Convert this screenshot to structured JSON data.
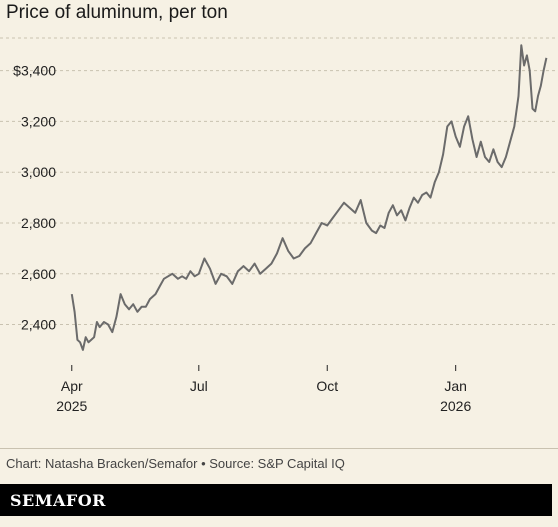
{
  "title": "Price of aluminum, per ton",
  "credit": "Chart: Natasha Bracken/Semafor • Source: S&P Capital IQ",
  "brand": "SEMAFOR",
  "colors": {
    "background": "#f6f1e4",
    "line": "#6b6b6b",
    "grid": "#c9c2b0",
    "brand_bar": "#000000"
  },
  "chart_data": {
    "type": "line",
    "title": "Price of aluminum, per ton",
    "xlabel": "",
    "ylabel": "",
    "ylim": [
      2280,
      3560
    ],
    "xlim": [
      "2025-03-25",
      "2026-03-11"
    ],
    "y_ticks": [
      {
        "value": 2400,
        "label": "2,400"
      },
      {
        "value": 2600,
        "label": "2,600"
      },
      {
        "value": 2800,
        "label": "2,800"
      },
      {
        "value": 3000,
        "label": "3,000"
      },
      {
        "value": 3200,
        "label": "3,200"
      },
      {
        "value": 3400,
        "label": "$3,400"
      }
    ],
    "x_ticks": [
      {
        "date": "2025-04-01",
        "label": "Apr",
        "sublabel": "2025"
      },
      {
        "date": "2025-07-01",
        "label": "Jul",
        "sublabel": ""
      },
      {
        "date": "2025-10-01",
        "label": "Oct",
        "sublabel": ""
      },
      {
        "date": "2026-01-01",
        "label": "Jan",
        "sublabel": "2026"
      }
    ],
    "grid": true,
    "series": [
      {
        "x": [
          "2025-04-01",
          "2025-04-03",
          "2025-04-05",
          "2025-04-07",
          "2025-04-09",
          "2025-04-11",
          "2025-04-13",
          "2025-04-15",
          "2025-04-17",
          "2025-04-19",
          "2025-04-21",
          "2025-04-24",
          "2025-04-27",
          "2025-04-30",
          "2025-05-03",
          "2025-05-06",
          "2025-05-09",
          "2025-05-12",
          "2025-05-15",
          "2025-05-18",
          "2025-05-21",
          "2025-05-24",
          "2025-05-27",
          "2025-05-31",
          "2025-06-03",
          "2025-06-06",
          "2025-06-09",
          "2025-06-12",
          "2025-06-16",
          "2025-06-19",
          "2025-06-22",
          "2025-06-25",
          "2025-06-28",
          "2025-07-01",
          "2025-07-05",
          "2025-07-09",
          "2025-07-13",
          "2025-07-17",
          "2025-07-21",
          "2025-07-25",
          "2025-07-29",
          "2025-08-02",
          "2025-08-06",
          "2025-08-10",
          "2025-08-14",
          "2025-08-18",
          "2025-08-22",
          "2025-08-26",
          "2025-08-30",
          "2025-09-03",
          "2025-09-07",
          "2025-09-11",
          "2025-09-15",
          "2025-09-19",
          "2025-09-23",
          "2025-09-27",
          "2025-10-01",
          "2025-10-05",
          "2025-10-09",
          "2025-10-13",
          "2025-10-17",
          "2025-10-21",
          "2025-10-25",
          "2025-10-29",
          "2025-11-02",
          "2025-11-05",
          "2025-11-08",
          "2025-11-11",
          "2025-11-14",
          "2025-11-17",
          "2025-11-20",
          "2025-11-23",
          "2025-11-26",
          "2025-11-29",
          "2025-12-02",
          "2025-12-05",
          "2025-12-08",
          "2025-12-11",
          "2025-12-14",
          "2025-12-17",
          "2025-12-20",
          "2025-12-23",
          "2025-12-26",
          "2025-12-29",
          "2026-01-01",
          "2026-01-04",
          "2026-01-07",
          "2026-01-10",
          "2026-01-13",
          "2026-01-16",
          "2026-01-19",
          "2026-01-22",
          "2026-01-25",
          "2026-01-28",
          "2026-01-31",
          "2026-02-03",
          "2026-02-06",
          "2026-02-09",
          "2026-02-12",
          "2026-02-15",
          "2026-02-17",
          "2026-02-19",
          "2026-02-21",
          "2026-02-23",
          "2026-02-25",
          "2026-02-27",
          "2026-03-01",
          "2026-03-03",
          "2026-03-05",
          "2026-03-07"
        ],
        "y": [
          2520,
          2450,
          2340,
          2330,
          2300,
          2350,
          2330,
          2340,
          2350,
          2410,
          2390,
          2410,
          2400,
          2370,
          2430,
          2520,
          2480,
          2460,
          2480,
          2450,
          2470,
          2470,
          2500,
          2520,
          2550,
          2580,
          2590,
          2600,
          2580,
          2590,
          2580,
          2610,
          2590,
          2600,
          2660,
          2620,
          2560,
          2600,
          2590,
          2560,
          2610,
          2630,
          2610,
          2640,
          2600,
          2620,
          2640,
          2680,
          2740,
          2690,
          2660,
          2670,
          2700,
          2720,
          2760,
          2800,
          2790,
          2820,
          2850,
          2880,
          2860,
          2840,
          2890,
          2800,
          2770,
          2760,
          2790,
          2780,
          2840,
          2870,
          2830,
          2850,
          2810,
          2860,
          2900,
          2880,
          2910,
          2920,
          2900,
          2960,
          3000,
          3070,
          3180,
          3200,
          3140,
          3100,
          3180,
          3220,
          3130,
          3060,
          3120,
          3060,
          3040,
          3090,
          3040,
          3020,
          3060,
          3120,
          3180,
          3300,
          3500,
          3420,
          3460,
          3400,
          3250,
          3240,
          3300,
          3340,
          3400,
          3450
        ]
      }
    ]
  }
}
